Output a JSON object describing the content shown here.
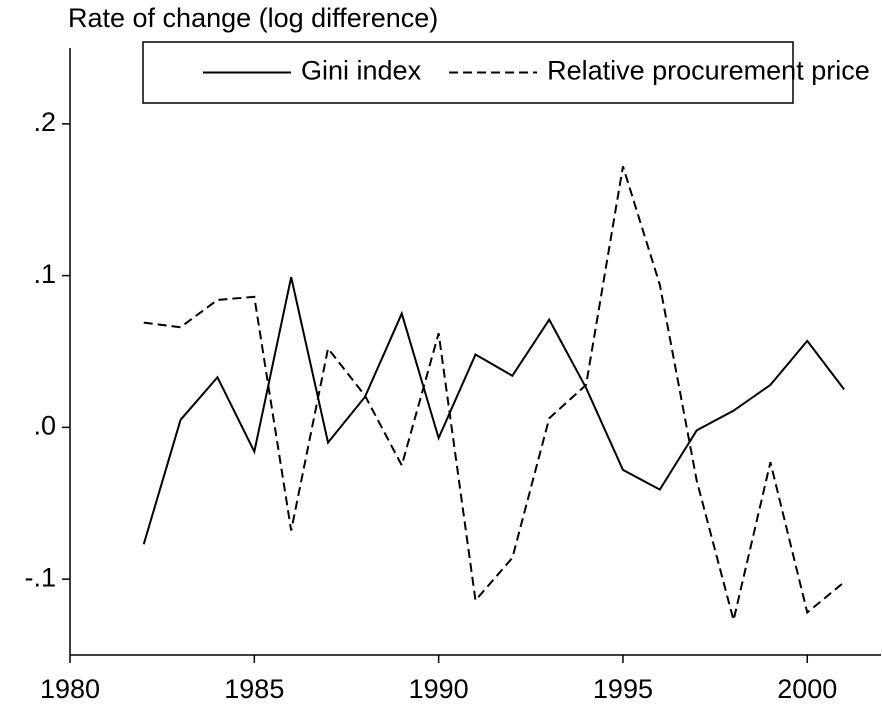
{
  "chart_data": {
    "type": "line",
    "title": "Rate of change (log difference)",
    "x": [
      1982,
      1983,
      1984,
      1985,
      1986,
      1987,
      1988,
      1989,
      1990,
      1991,
      1992,
      1993,
      1994,
      1995,
      1996,
      1997,
      1998,
      1999,
      2000,
      2001
    ],
    "series": [
      {
        "name": "Gini index",
        "color": "#000000",
        "style": "solid",
        "values": [
          -0.077,
          0.005,
          0.033,
          -0.016,
          0.099,
          -0.01,
          0.02,
          0.075,
          -0.007,
          0.048,
          0.034,
          0.071,
          0.026,
          -0.028,
          -0.041,
          -0.002,
          0.011,
          0.028,
          0.057,
          0.025
        ]
      },
      {
        "name": "Relative procurement price",
        "color": "#000000",
        "style": "dashed",
        "values": [
          0.069,
          0.066,
          0.084,
          0.086,
          -0.068,
          0.052,
          0.021,
          -0.025,
          0.062,
          -0.114,
          -0.086,
          0.006,
          0.028,
          0.172,
          0.094,
          -0.035,
          -0.127,
          -0.023,
          -0.122,
          -0.102
        ]
      }
    ],
    "xlim": [
      1980,
      2002
    ],
    "xticks": [
      1980,
      1985,
      1990,
      1995,
      2000
    ],
    "ylim": [
      -0.15,
      0.25
    ],
    "yticks": [
      {
        "value": -0.1,
        "label": "-.1"
      },
      {
        "value": 0,
        "label": ".0"
      },
      {
        "value": 0.1,
        "label": ".1"
      },
      {
        "value": 0.2,
        "label": ".2"
      }
    ],
    "legend": "top"
  }
}
